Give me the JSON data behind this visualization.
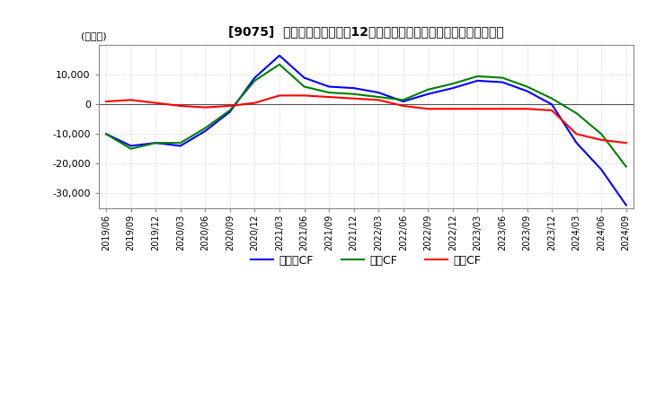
{
  "title": "[9075]  キャッシュフローの12か月移動合計の対前年同期増減額の推移",
  "ylabel": "(百万円)",
  "ylim": [
    -35000,
    20000
  ],
  "yticks": [
    10000,
    0,
    -10000,
    -20000,
    -30000
  ],
  "background_color": "#ffffff",
  "grid_color": "#bbbbbb",
  "dates": [
    "2019/06",
    "2019/09",
    "2019/12",
    "2020/03",
    "2020/06",
    "2020/09",
    "2020/12",
    "2021/03",
    "2021/06",
    "2021/09",
    "2021/12",
    "2022/03",
    "2022/06",
    "2022/09",
    "2022/12",
    "2023/03",
    "2023/06",
    "2023/09",
    "2023/12",
    "2024/03",
    "2024/06",
    "2024/09"
  ],
  "operating_cf": [
    1000,
    1500,
    500,
    -500,
    -1000,
    -500,
    500,
    3000,
    3000,
    2500,
    2000,
    1500,
    -500,
    -1500,
    -1500,
    -1500,
    -1500,
    -1500,
    -2000,
    -10000,
    -12000,
    -13000
  ],
  "investing_cf": [
    -10000,
    -15000,
    -13000,
    -13000,
    -8000,
    -2000,
    8000,
    13500,
    6000,
    4000,
    3500,
    2500,
    1500,
    5000,
    7000,
    9500,
    9000,
    6000,
    2000,
    -3000,
    -10000,
    -21000
  ],
  "free_cf": [
    -10000,
    -14000,
    -13000,
    -14000,
    -9000,
    -2500,
    9000,
    16500,
    9000,
    6000,
    5500,
    4000,
    1000,
    3500,
    5500,
    8000,
    7500,
    4500,
    0,
    -13000,
    -22000,
    -34000
  ],
  "operating_color": "#ff0000",
  "investing_color": "#008000",
  "free_color": "#0000ff",
  "line_width": 1.5
}
